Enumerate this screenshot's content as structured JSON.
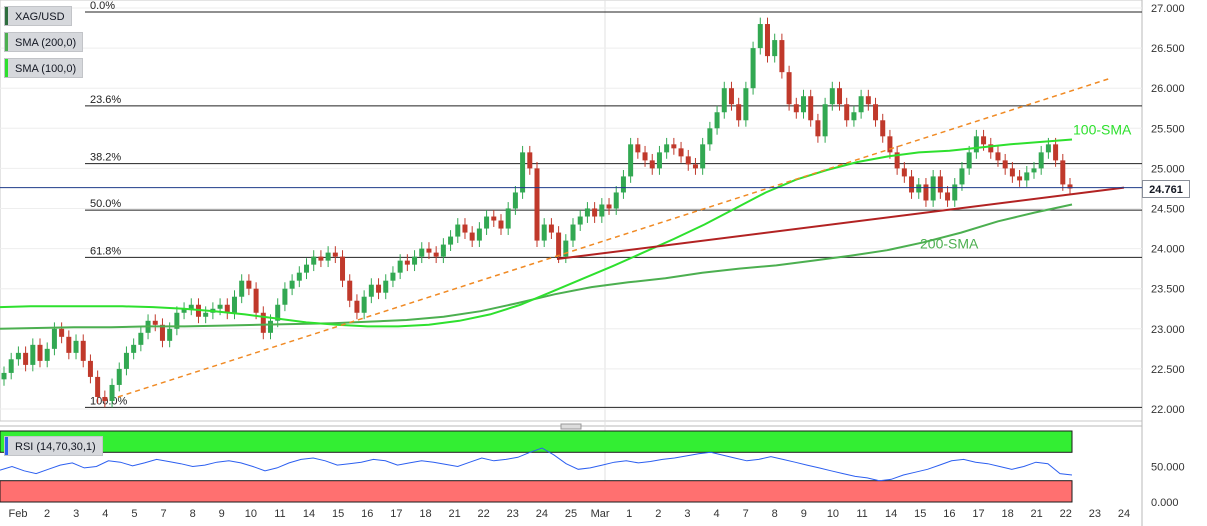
{
  "chart_data": {
    "type": "candlestick",
    "symbol": "XAG/USD",
    "legend": [
      "SMA (200,0)",
      "SMA (100,0)"
    ],
    "colors": {
      "up": "#32a852",
      "down": "#c0392b",
      "sma100": "#2ee02e",
      "sma200": "#4caf50",
      "trendline": "#b22222",
      "channel": "#f08a24",
      "fib": "#222222",
      "rsi_line": "#2c5ff0",
      "rsi_overbought": "#33ee33",
      "rsi_oversold": "#ff7070"
    },
    "price_axis": {
      "min": 22.0,
      "max": 27.0,
      "ticks": [
        "27.000",
        "26.500",
        "26.000",
        "25.500",
        "25.000",
        "24.500",
        "24.000",
        "23.500",
        "23.000",
        "22.500",
        "22.000"
      ]
    },
    "current_price": "24.761",
    "x_axis": [
      "Feb",
      "2",
      "3",
      "4",
      "5",
      "7",
      "8",
      "9",
      "10",
      "11",
      "14",
      "15",
      "16",
      "17",
      "18",
      "21",
      "22",
      "23",
      "24",
      "25",
      "Mar",
      "1",
      "2",
      "3",
      "4",
      "7",
      "8",
      "9",
      "10",
      "11",
      "14",
      "15",
      "16",
      "17",
      "18",
      "21",
      "22",
      "23",
      "24"
    ],
    "fibonacci": [
      {
        "label": "0.0%",
        "price": 26.95
      },
      {
        "label": "23.6%",
        "price": 25.78
      },
      {
        "label": "38.2%",
        "price": 25.06
      },
      {
        "label": "50.0%",
        "price": 24.48
      },
      {
        "label": "61.8%",
        "price": 23.89
      },
      {
        "label": "100.0%",
        "price": 22.02
      }
    ],
    "annotations": {
      "sma100_label": "100-SMA",
      "sma200_label": "200-SMA"
    },
    "candles_close": [
      22.45,
      22.62,
      22.7,
      22.55,
      22.8,
      22.6,
      22.75,
      23.0,
      22.9,
      22.7,
      22.85,
      22.6,
      22.4,
      22.15,
      22.1,
      22.3,
      22.5,
      22.7,
      22.8,
      22.95,
      23.1,
      23.05,
      22.85,
      23.0,
      23.2,
      23.25,
      23.3,
      23.15,
      23.2,
      23.25,
      23.3,
      23.2,
      23.4,
      23.6,
      23.5,
      23.2,
      22.95,
      23.1,
      23.3,
      23.5,
      23.6,
      23.7,
      23.8,
      23.9,
      23.85,
      23.95,
      23.9,
      23.6,
      23.35,
      23.2,
      23.4,
      23.55,
      23.45,
      23.6,
      23.7,
      23.85,
      23.8,
      23.9,
      24.0,
      23.95,
      23.9,
      24.05,
      24.15,
      24.3,
      24.2,
      24.1,
      24.25,
      24.4,
      24.35,
      24.25,
      24.5,
      24.7,
      25.2,
      25.0,
      24.1,
      24.3,
      24.2,
      23.9,
      24.1,
      24.3,
      24.4,
      24.5,
      24.4,
      24.55,
      24.5,
      24.7,
      24.9,
      25.3,
      25.2,
      25.1,
      25.0,
      25.2,
      25.3,
      25.25,
      25.15,
      25.05,
      25.0,
      25.3,
      25.5,
      25.7,
      26.0,
      25.8,
      25.6,
      26.0,
      26.5,
      26.8,
      26.4,
      26.6,
      26.2,
      25.8,
      25.7,
      25.9,
      25.6,
      25.4,
      25.8,
      26.0,
      25.8,
      25.6,
      25.7,
      25.9,
      25.8,
      25.6,
      25.4,
      25.2,
      25.0,
      24.9,
      24.7,
      24.8,
      24.6,
      24.9,
      24.7,
      24.6,
      24.8,
      25.0,
      25.2,
      25.4,
      25.3,
      25.2,
      25.1,
      25.0,
      24.9,
      24.85,
      24.95,
      25.0,
      25.2,
      25.3,
      25.1,
      24.8,
      24.75
    ],
    "sma100": [
      23.27,
      23.28,
      23.28,
      23.28,
      23.28,
      23.27,
      23.25,
      23.22,
      23.18,
      23.13,
      23.08,
      23.05,
      23.03,
      23.03,
      23.05,
      23.1,
      23.18,
      23.3,
      23.46,
      23.62,
      23.78,
      23.95,
      24.12,
      24.3,
      24.5,
      24.7,
      24.86,
      24.98,
      25.08,
      25.15,
      25.2,
      25.22,
      25.26,
      25.3,
      25.33,
      25.36
    ],
    "sma200": [
      23.0,
      23.01,
      23.02,
      23.02,
      23.03,
      23.03,
      23.04,
      23.05,
      23.06,
      23.07,
      23.09,
      23.11,
      23.15,
      23.22,
      23.32,
      23.43,
      23.52,
      23.58,
      23.63,
      23.7,
      23.75,
      23.79,
      23.85,
      23.91,
      23.98,
      24.08,
      24.2,
      24.34,
      24.45,
      24.55
    ],
    "rsi": {
      "label": "RSI (14,70,30,1)",
      "ticks": [
        "50.000",
        "0.000"
      ],
      "overbought": 70,
      "oversold": 30,
      "values": [
        45,
        50,
        44,
        40,
        46,
        52,
        55,
        48,
        50,
        58,
        56,
        51,
        55,
        60,
        57,
        54,
        50,
        52,
        56,
        58,
        55,
        50,
        44,
        48,
        55,
        60,
        62,
        58,
        52,
        54,
        56,
        60,
        58,
        52,
        55,
        58,
        56,
        53,
        50,
        56,
        62,
        58,
        60,
        63,
        70,
        76,
        66,
        54,
        46,
        48,
        52,
        56,
        58,
        55,
        57,
        60,
        62,
        65,
        68,
        70,
        66,
        62,
        58,
        60,
        64,
        60,
        56,
        52,
        48,
        44,
        40,
        36,
        34,
        30,
        32,
        38,
        42,
        46,
        52,
        58,
        60,
        56,
        54,
        50,
        46,
        50,
        56,
        54,
        40,
        38
      ]
    }
  }
}
